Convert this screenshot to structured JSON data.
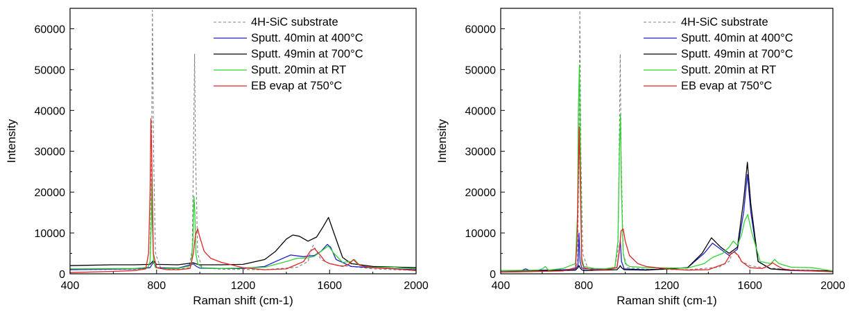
{
  "chart_data": [
    {
      "type": "line",
      "xlabel": "Raman shift (cm-1)",
      "ylabel": "Intensity",
      "xlim": [
        400,
        2000
      ],
      "ylim": [
        0,
        65000
      ],
      "xticks": [
        400,
        800,
        1200,
        1600,
        2000
      ],
      "yticks": [
        0,
        10000,
        20000,
        30000,
        40000,
        50000,
        60000
      ],
      "legend_position": "top-right",
      "series": [
        {
          "name": "4H-SiC substrate",
          "color": "#808080",
          "dash": true,
          "x": [
            400,
            700,
            760,
            770,
            777,
            781,
            786,
            795,
            820,
            900,
            950,
            965,
            973,
            976,
            980,
            990,
            1010,
            1100,
            1300,
            1450,
            1500,
            1515,
            1525,
            1535,
            1560,
            1600,
            1650,
            1700,
            1800,
            2000
          ],
          "y": [
            1000,
            1100,
            1400,
            3000,
            30000,
            64500,
            30000,
            5000,
            1300,
            1100,
            1500,
            6000,
            40000,
            53800,
            30000,
            5000,
            1500,
            1100,
            1000,
            1600,
            3000,
            6000,
            7000,
            6000,
            3500,
            2500,
            2000,
            1800,
            1200,
            800
          ]
        },
        {
          "name": "Sputt. 40min at 400°C",
          "color": "#1f1fc8",
          "dash": false,
          "x": [
            400,
            700,
            770,
            785,
            800,
            900,
            970,
            985,
            1000,
            1100,
            1200,
            1300,
            1350,
            1420,
            1480,
            1530,
            1560,
            1590,
            1605,
            1630,
            1700,
            1800,
            2000
          ],
          "y": [
            1000,
            1200,
            1500,
            2800,
            1500,
            1400,
            2400,
            1800,
            1400,
            1300,
            1300,
            1800,
            3000,
            4600,
            4200,
            4500,
            5500,
            7200,
            6500,
            3500,
            1800,
            1500,
            1000
          ]
        },
        {
          "name": "Sputt. 49min at 700°C",
          "color": "#000000",
          "dash": false,
          "x": [
            400,
            600,
            700,
            770,
            785,
            800,
            900,
            970,
            985,
            1000,
            1100,
            1200,
            1300,
            1350,
            1400,
            1430,
            1460,
            1500,
            1540,
            1570,
            1595,
            1620,
            1660,
            1700,
            1800,
            2000
          ],
          "y": [
            2000,
            2200,
            2200,
            2300,
            3200,
            2300,
            2200,
            2700,
            2400,
            2200,
            2200,
            2300,
            3500,
            5500,
            8500,
            9500,
            9200,
            8000,
            9000,
            11500,
            13800,
            10000,
            4000,
            2500,
            1800,
            1500
          ]
        },
        {
          "name": "Sputt. 20min at RT",
          "color": "#2fd32f",
          "dash": false,
          "x": [
            400,
            700,
            760,
            770,
            775,
            778,
            781,
            786,
            795,
            820,
            900,
            960,
            968,
            973,
            977,
            982,
            990,
            1010,
            1100,
            1300,
            1400,
            1450,
            1500,
            1530,
            1560,
            1595,
            1620,
            1660,
            1700,
            1715,
            1740,
            1800,
            1900,
            2000
          ],
          "y": [
            1200,
            1300,
            1600,
            3000,
            12000,
            23000,
            12000,
            3000,
            1500,
            1300,
            1300,
            2000,
            8000,
            19000,
            15000,
            5000,
            2500,
            1500,
            1300,
            1600,
            3000,
            3800,
            3900,
            4300,
            5500,
            6800,
            5000,
            2800,
            3000,
            3500,
            2000,
            1600,
            1600,
            1200
          ]
        },
        {
          "name": "EB evap at 750°C",
          "color": "#e12323",
          "dash": false,
          "x": [
            400,
            600,
            700,
            750,
            763,
            770,
            774,
            778,
            785,
            800,
            850,
            900,
            955,
            970,
            980,
            990,
            1000,
            1020,
            1050,
            1100,
            1200,
            1300,
            1400,
            1480,
            1510,
            1530,
            1550,
            1580,
            1600,
            1660,
            1690,
            1710,
            1730,
            1760,
            1800,
            1900,
            2000
          ],
          "y": [
            300,
            600,
            800,
            1200,
            5000,
            20000,
            38000,
            28000,
            5000,
            1500,
            1000,
            1000,
            1300,
            5000,
            9500,
            11000,
            9000,
            5500,
            3800,
            2800,
            1500,
            1000,
            1200,
            3000,
            5500,
            6200,
            5000,
            3000,
            2500,
            1800,
            2400,
            3500,
            2400,
            1800,
            1500,
            1200,
            800
          ]
        }
      ]
    },
    {
      "type": "line",
      "xlabel": "Raman shift (cm-1)",
      "ylabel": "Intensity",
      "xlim": [
        400,
        2000
      ],
      "ylim": [
        0,
        65000
      ],
      "xticks": [
        400,
        800,
        1200,
        1600,
        2000
      ],
      "yticks": [
        0,
        10000,
        20000,
        30000,
        40000,
        50000,
        60000
      ],
      "legend_position": "top-right",
      "series": [
        {
          "name": "4H-SiC substrate",
          "color": "#808080",
          "dash": true,
          "x": [
            400,
            700,
            760,
            770,
            777,
            781,
            786,
            795,
            820,
            900,
            950,
            965,
            973,
            976,
            980,
            990,
            1010,
            1100,
            1300,
            1450,
            1500,
            1515,
            1525,
            1535,
            1560,
            1600,
            1650,
            1700,
            1800,
            2000
          ],
          "y": [
            800,
            900,
            1200,
            3000,
            30000,
            64500,
            30000,
            5000,
            1200,
            1000,
            1500,
            6000,
            40000,
            53800,
            30000,
            5000,
            1500,
            1100,
            1000,
            1600,
            3000,
            5000,
            5500,
            5000,
            3000,
            2000,
            1600,
            1400,
            1000,
            700
          ]
        },
        {
          "name": "Sputt. 40min at 400°C",
          "color": "#1f1fc8",
          "dash": false,
          "x": [
            400,
            500,
            520,
            540,
            700,
            760,
            772,
            777,
            782,
            790,
            800,
            900,
            960,
            970,
            976,
            982,
            995,
            1100,
            1300,
            1380,
            1420,
            1460,
            1500,
            1540,
            1570,
            1588,
            1605,
            1640,
            1700,
            1800,
            2000
          ],
          "y": [
            700,
            800,
            1200,
            800,
            1000,
            1200,
            2000,
            10000,
            3000,
            1500,
            1200,
            1100,
            1500,
            5000,
            8200,
            3000,
            1200,
            1000,
            1500,
            5000,
            7500,
            6000,
            4500,
            6000,
            15000,
            24300,
            15000,
            3000,
            1200,
            800,
            600
          ]
        },
        {
          "name": "Sputt. 49min at 700°C",
          "color": "#000000",
          "dash": false,
          "x": [
            400,
            700,
            760,
            772,
            777,
            782,
            790,
            800,
            900,
            960,
            970,
            976,
            982,
            995,
            1100,
            1300,
            1370,
            1415,
            1460,
            1500,
            1540,
            1570,
            1588,
            1605,
            1640,
            1700,
            1800,
            2000
          ],
          "y": [
            700,
            800,
            900,
            1500,
            2000,
            1500,
            1000,
            800,
            900,
            1000,
            1500,
            2000,
            1500,
            1000,
            900,
            1500,
            5000,
            8800,
            6500,
            5000,
            6500,
            18000,
            27300,
            17000,
            3000,
            1200,
            900,
            700
          ]
        },
        {
          "name": "Sputt. 20min at RT",
          "color": "#2fd32f",
          "dash": false,
          "x": [
            400,
            580,
            600,
            615,
            630,
            700,
            760,
            770,
            774,
            779,
            784,
            790,
            800,
            850,
            900,
            950,
            965,
            972,
            977,
            982,
            990,
            1000,
            1020,
            1100,
            1300,
            1380,
            1420,
            1470,
            1500,
            1520,
            1540,
            1560,
            1575,
            1590,
            1610,
            1650,
            1700,
            1720,
            1740,
            1800,
            1900,
            2000
          ],
          "y": [
            800,
            900,
            1200,
            1800,
            900,
            1300,
            2500,
            15000,
            40000,
            51000,
            30000,
            4000,
            1800,
            1300,
            1200,
            1600,
            8000,
            30000,
            39000,
            20000,
            5000,
            2500,
            1800,
            1500,
            1400,
            2500,
            4000,
            5000,
            6500,
            8000,
            7000,
            9500,
            13000,
            14500,
            10000,
            3000,
            2500,
            3500,
            2500,
            1600,
            1500,
            700
          ]
        },
        {
          "name": "EB evap at 750°C",
          "color": "#e12323",
          "dash": false,
          "x": [
            400,
            700,
            760,
            768,
            774,
            778,
            784,
            790,
            800,
            850,
            900,
            960,
            972,
            980,
            990,
            1000,
            1020,
            1060,
            1100,
            1200,
            1300,
            1400,
            1480,
            1510,
            1525,
            1545,
            1560,
            1600,
            1660,
            1690,
            1710,
            1730,
            1760,
            1800,
            1900,
            2000
          ],
          "y": [
            400,
            700,
            1500,
            8000,
            25000,
            36000,
            20000,
            3000,
            1500,
            900,
            900,
            1500,
            6000,
            10500,
            11000,
            8000,
            4500,
            2500,
            1800,
            1200,
            900,
            1000,
            2500,
            5000,
            5300,
            4500,
            3000,
            1500,
            1300,
            2000,
            2700,
            2000,
            1200,
            900,
            700,
            500
          ]
        }
      ]
    }
  ]
}
